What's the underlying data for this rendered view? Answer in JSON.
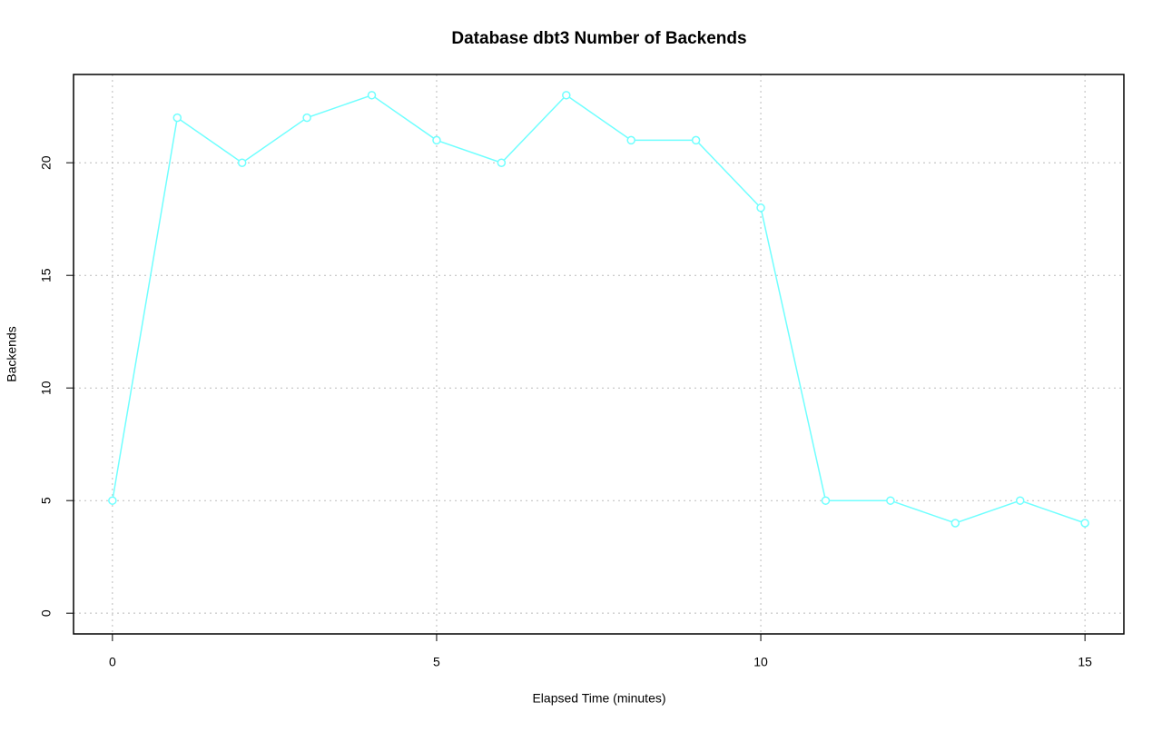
{
  "chart_data": {
    "type": "line",
    "title": "Database dbt3 Number of Backends",
    "xlabel": "Elapsed Time (minutes)",
    "ylabel": "Backends",
    "x": [
      0,
      1,
      2,
      3,
      4,
      5,
      6,
      7,
      8,
      9,
      10,
      11,
      12,
      13,
      14,
      15
    ],
    "series": [
      {
        "name": "Backends",
        "color": "#70ffff",
        "values": [
          5,
          22,
          20,
          22,
          23,
          21,
          20,
          23,
          21,
          21,
          18,
          5,
          5,
          4,
          5,
          4
        ]
      }
    ],
    "xlim": [
      -0.6,
      15.6
    ],
    "ylim": [
      -0.92,
      23.92
    ],
    "xticks": [
      0,
      5,
      10,
      15
    ],
    "yticks": [
      0,
      5,
      10,
      15,
      20
    ],
    "grid": true
  }
}
